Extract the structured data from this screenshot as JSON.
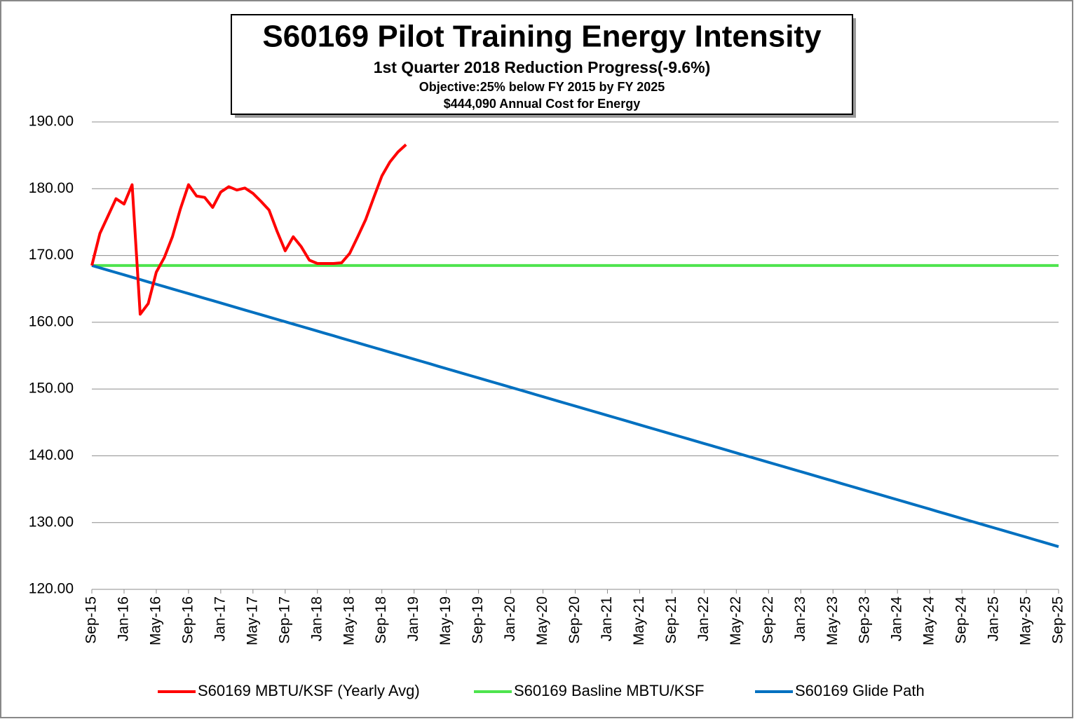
{
  "chart_data": {
    "type": "line",
    "title": "S60169 Pilot Training Energy Intensity",
    "subtitle": "1st Quarter 2018 Reduction Progress(-9.6%)",
    "annotations": [
      "Objective:25% below FY 2015 by FY 2025",
      "$444,090 Annual Cost for Energy"
    ],
    "categories": [
      "Sep-15",
      null,
      null,
      null,
      "Jan-16",
      null,
      null,
      null,
      "May-16",
      null,
      null,
      null,
      "Sep-16",
      null,
      null,
      null,
      "Jan-17",
      null,
      null,
      null,
      "May-17",
      null,
      null,
      null,
      "Sep-17",
      null,
      null,
      null,
      "Jan-18",
      null,
      null,
      null,
      "May-18",
      null,
      null,
      null,
      "Sep-18",
      null,
      null,
      null,
      "Jan-19",
      null,
      null,
      null,
      "May-19",
      null,
      null,
      null,
      "Sep-19",
      null,
      null,
      null,
      "Jan-20",
      null,
      null,
      null,
      "May-20",
      null,
      null,
      null,
      "Sep-20",
      null,
      null,
      null,
      "Jan-21",
      null,
      null,
      null,
      "May-21",
      null,
      null,
      null,
      "Sep-21",
      null,
      null,
      null,
      "Jan-22",
      null,
      null,
      null,
      "May-22",
      null,
      null,
      null,
      "Sep-22",
      null,
      null,
      null,
      "Jan-23",
      null,
      null,
      null,
      "May-23",
      null,
      null,
      null,
      "Sep-23",
      null,
      null,
      null,
      "Jan-24",
      null,
      null,
      null,
      "May-24",
      null,
      null,
      null,
      "Sep-24",
      null,
      null,
      null,
      "Jan-25",
      null,
      null,
      null,
      "May-25",
      null,
      null,
      null,
      "Sep-25"
    ],
    "series": [
      {
        "name": "S60169 MBTU/KSF (Yearly Avg)",
        "color": "#ff0000",
        "values": [
          168.5,
          173.3,
          175.9,
          178.5,
          177.7,
          180.6,
          161.2,
          162.8,
          167.5,
          169.7,
          172.8,
          177.0,
          180.6,
          178.9,
          178.7,
          177.2,
          179.5,
          180.3,
          179.8,
          180.1,
          179.3,
          178.1,
          176.8,
          173.6,
          170.7,
          172.8,
          171.3,
          169.3,
          168.8,
          168.8,
          168.8,
          168.9,
          170.3,
          172.8,
          175.4,
          178.7,
          181.9,
          184.0,
          185.5,
          186.6,
          null,
          null,
          null,
          null,
          null,
          null,
          null,
          null,
          null,
          null,
          null,
          null,
          null,
          null,
          null,
          null,
          null,
          null,
          null,
          null,
          null,
          null,
          null,
          null,
          null,
          null,
          null,
          null,
          null,
          null,
          null,
          null,
          null,
          null,
          null,
          null,
          null,
          null,
          null,
          null,
          null,
          null,
          null,
          null,
          null,
          null,
          null,
          null,
          null,
          null,
          null,
          null,
          null,
          null,
          null,
          null,
          null,
          null,
          null,
          null,
          null,
          null,
          null,
          null,
          null,
          null,
          null,
          null,
          null,
          null,
          null,
          null,
          null,
          null,
          null,
          null,
          null,
          null,
          null,
          null,
          null
        ]
      },
      {
        "name": "S60169 Basline MBTU/KSF",
        "color": "#4ee44e",
        "values": [
          168.5,
          168.5,
          168.5,
          168.5,
          168.5,
          168.5,
          168.5,
          168.5,
          168.5,
          168.5,
          168.5,
          168.5,
          168.5,
          168.5,
          168.5,
          168.5,
          168.5,
          168.5,
          168.5,
          168.5,
          168.5,
          168.5,
          168.5,
          168.5,
          168.5,
          168.5,
          168.5,
          168.5,
          168.5,
          168.5,
          168.5,
          168.5,
          168.5,
          168.5,
          168.5,
          168.5,
          168.5,
          168.5,
          168.5,
          168.5,
          168.5,
          168.5,
          168.5,
          168.5,
          168.5,
          168.5,
          168.5,
          168.5,
          168.5,
          168.5,
          168.5,
          168.5,
          168.5,
          168.5,
          168.5,
          168.5,
          168.5,
          168.5,
          168.5,
          168.5,
          168.5,
          168.5,
          168.5,
          168.5,
          168.5,
          168.5,
          168.5,
          168.5,
          168.5,
          168.5,
          168.5,
          168.5,
          168.5,
          168.5,
          168.5,
          168.5,
          168.5,
          168.5,
          168.5,
          168.5,
          168.5,
          168.5,
          168.5,
          168.5,
          168.5,
          168.5,
          168.5,
          168.5,
          168.5,
          168.5,
          168.5,
          168.5,
          168.5,
          168.5,
          168.5,
          168.5,
          168.5,
          168.5,
          168.5,
          168.5,
          168.5,
          168.5,
          168.5,
          168.5,
          168.5,
          168.5,
          168.5,
          168.5,
          168.5,
          168.5,
          168.5,
          168.5,
          168.5,
          168.5,
          168.5,
          168.5,
          168.5,
          168.5,
          168.5,
          168.5,
          168.5
        ]
      },
      {
        "name": "S60169 Glide Path",
        "color": "#0070c0",
        "values": [
          168.5,
          168.15,
          167.8,
          167.45,
          167.1,
          166.75,
          166.4,
          166.04,
          165.69,
          165.34,
          164.99,
          164.64,
          164.29,
          163.94,
          163.59,
          163.24,
          162.89,
          162.54,
          162.18,
          161.83,
          161.48,
          161.13,
          160.78,
          160.43,
          160.08,
          159.73,
          159.38,
          159.03,
          158.68,
          158.33,
          157.98,
          157.62,
          157.27,
          156.92,
          156.57,
          156.22,
          155.87,
          155.52,
          155.17,
          154.82,
          154.47,
          154.12,
          153.77,
          153.41,
          153.06,
          152.71,
          152.36,
          152.01,
          151.66,
          151.31,
          150.96,
          150.61,
          150.26,
          149.91,
          149.56,
          149.2,
          148.85,
          148.5,
          148.15,
          147.8,
          147.45,
          147.1,
          146.75,
          146.4,
          146.05,
          145.7,
          145.35,
          145.0,
          144.64,
          144.29,
          143.94,
          143.59,
          143.24,
          142.89,
          142.54,
          142.19,
          141.84,
          141.49,
          141.14,
          140.79,
          140.43,
          140.08,
          139.73,
          139.38,
          139.03,
          138.68,
          138.33,
          137.98,
          137.63,
          137.28,
          136.93,
          136.58,
          136.23,
          135.87,
          135.52,
          135.17,
          134.82,
          134.47,
          134.12,
          133.77,
          133.42,
          133.07,
          132.72,
          132.37,
          132.02,
          131.66,
          131.31,
          130.96,
          130.61,
          130.26,
          129.91,
          129.56,
          129.21,
          128.86,
          128.51,
          128.16,
          127.81,
          127.45,
          127.1,
          126.75,
          126.4
        ]
      }
    ],
    "ylim": [
      120,
      190
    ],
    "yticks": [
      {
        "value": 120,
        "label": "120.00"
      },
      {
        "value": 130,
        "label": "130.00"
      },
      {
        "value": 140,
        "label": "140.00"
      },
      {
        "value": 150,
        "label": "150.00"
      },
      {
        "value": 160,
        "label": "160.00"
      },
      {
        "value": 170,
        "label": "170.00"
      },
      {
        "value": 180,
        "label": "180.00"
      },
      {
        "value": 190,
        "label": "190.00"
      }
    ],
    "grid": true,
    "legend": "bottom"
  }
}
